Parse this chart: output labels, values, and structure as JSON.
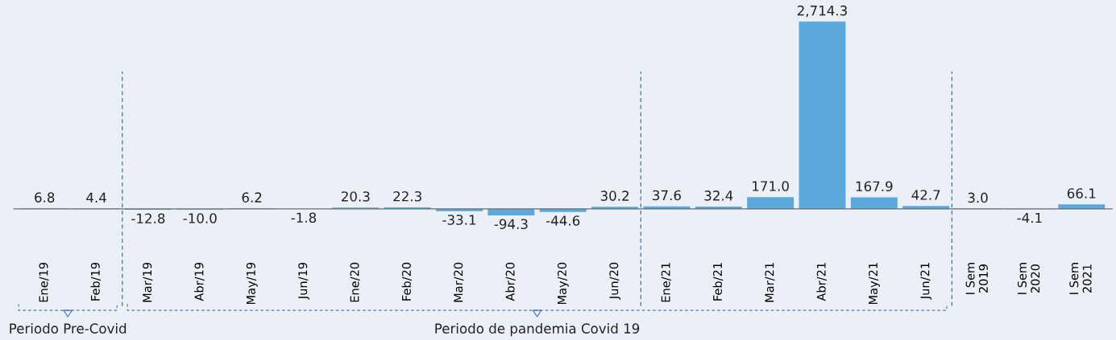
{
  "chart_data": {
    "type": "bar",
    "categories": [
      "Ene/19",
      "Feb/19",
      "Mar/19",
      "Abr/19",
      "May/19",
      "Jun/19",
      "Ene/20",
      "Feb/20",
      "Mar/20",
      "Abr/20",
      "May/20",
      "Jun/20",
      "Ene/21",
      "Feb/21",
      "Mar/21",
      "Abr/21",
      "May/21",
      "Jun/21",
      "I Sem\n2019",
      "I Sem\n2020",
      "I Sem\n2021"
    ],
    "values": [
      6.8,
      4.4,
      -12.8,
      -10.0,
      6.2,
      -1.8,
      20.3,
      22.3,
      -33.1,
      -94.3,
      -44.6,
      30.2,
      37.6,
      32.4,
      171.0,
      2714.3,
      167.9,
      42.7,
      3.0,
      -4.1,
      66.1
    ],
    "value_labels": [
      "6.8",
      "4.4",
      "-12.8",
      "-10.0",
      "6.2",
      "-1.8",
      "20.3",
      "22.3",
      "-33.1",
      "-94.3",
      "-44.6",
      "30.2",
      "37.6",
      "32.4",
      "171.0",
      "2,714.3",
      "167.9",
      "42.7",
      "3.0",
      "-4.1",
      "66.1"
    ],
    "color": "#5aa8dc",
    "tick_labels": "x",
    "grid": false,
    "annotations": [
      "Periodo Pre-Covid",
      "Periodo de pandemia Covid 19"
    ]
  }
}
